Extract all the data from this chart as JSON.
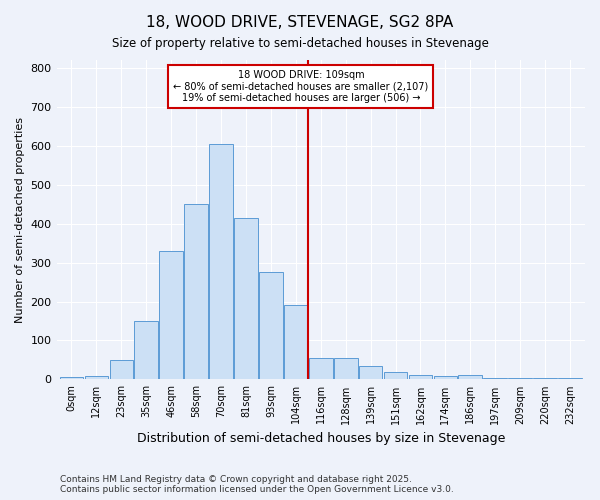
{
  "title": "18, WOOD DRIVE, STEVENAGE, SG2 8PA",
  "subtitle": "Size of property relative to semi-detached houses in Stevenage",
  "xlabel": "Distribution of semi-detached houses by size in Stevenage",
  "ylabel": "Number of semi-detached properties",
  "footnote1": "Contains HM Land Registry data © Crown copyright and database right 2025.",
  "footnote2": "Contains public sector information licensed under the Open Government Licence v3.0.",
  "bar_labels": [
    "0sqm",
    "12sqm",
    "23sqm",
    "35sqm",
    "46sqm",
    "58sqm",
    "70sqm",
    "81sqm",
    "93sqm",
    "104sqm",
    "116sqm",
    "128sqm",
    "139sqm",
    "151sqm",
    "162sqm",
    "174sqm",
    "186sqm",
    "197sqm",
    "209sqm",
    "220sqm",
    "232sqm"
  ],
  "bar_values": [
    5,
    10,
    50,
    150,
    330,
    450,
    605,
    415,
    275,
    190,
    55,
    55,
    35,
    18,
    12,
    10,
    12,
    3,
    3,
    3,
    3
  ],
  "bar_color": "#cce0f5",
  "bar_edge_color": "#5b9bd5",
  "vline_color": "#cc0000",
  "annotation_box_color": "#cc0000",
  "background_color": "#eef2fa",
  "grid_color": "#ffffff",
  "ylim": [
    0,
    820
  ],
  "yticks": [
    0,
    100,
    200,
    300,
    400,
    500,
    600,
    700,
    800
  ],
  "annotation_line1": "18 WOOD DRIVE: 109sqm",
  "annotation_line2": "← 80% of semi-detached houses are smaller (2,107)",
  "annotation_line3": "19% of semi-detached houses are larger (506) →",
  "vline_index": 9.5
}
